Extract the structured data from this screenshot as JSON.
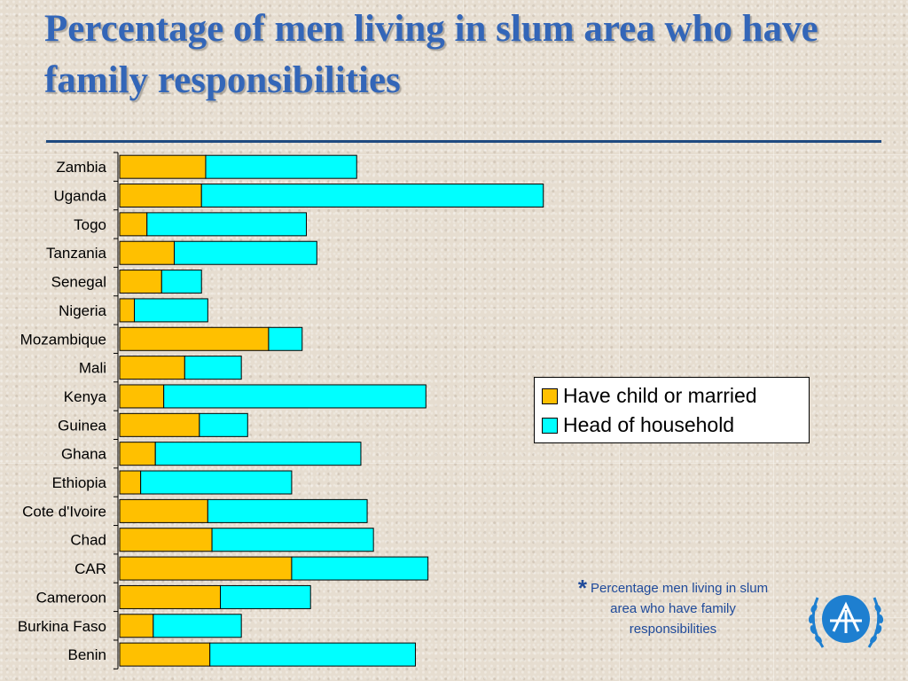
{
  "slide": {
    "title": "Percentage of men living in slum area who have family responsibilities",
    "footnote_mark": "*",
    "footnote_text": "Percentage men living in slum area who have family responsibilities"
  },
  "chart_data": {
    "type": "bar",
    "orientation": "horizontal",
    "stacked": true,
    "title": "",
    "xlabel": "",
    "ylabel": "",
    "xlim": [
      0,
      100
    ],
    "categories": [
      "Zambia",
      "Uganda",
      "Togo",
      "Tanzania",
      "Senegal",
      "Nigeria",
      "Mozambique",
      "Mali",
      "Kenya",
      "Guinea",
      "Ghana",
      "Ethiopia",
      "Cote d'Ivoire",
      "Chad",
      "CAR",
      "Cameroon",
      "Burkina Faso",
      "Benin"
    ],
    "series": [
      {
        "name": "Have child or married",
        "color": "#ffc000",
        "values": [
          20.5,
          19.5,
          6.5,
          13.0,
          10.0,
          3.5,
          35.5,
          15.5,
          10.5,
          19.0,
          8.5,
          5.0,
          21.0,
          22.0,
          41.0,
          24.0,
          8.0,
          21.5
        ]
      },
      {
        "name": "Head of household",
        "color": "#00ffff",
        "values": [
          36.0,
          81.5,
          38.0,
          34.0,
          9.5,
          17.5,
          8.0,
          13.5,
          62.5,
          11.5,
          49.0,
          36.0,
          38.0,
          38.5,
          32.5,
          21.5,
          21.0,
          49.0
        ]
      }
    ],
    "legend": "right"
  },
  "icons": {
    "logo": "un-habitat-emblem-icon"
  },
  "colors": {
    "title": "#3366b8",
    "rule": "#1f4a80",
    "footnote": "#1f4a9a"
  }
}
